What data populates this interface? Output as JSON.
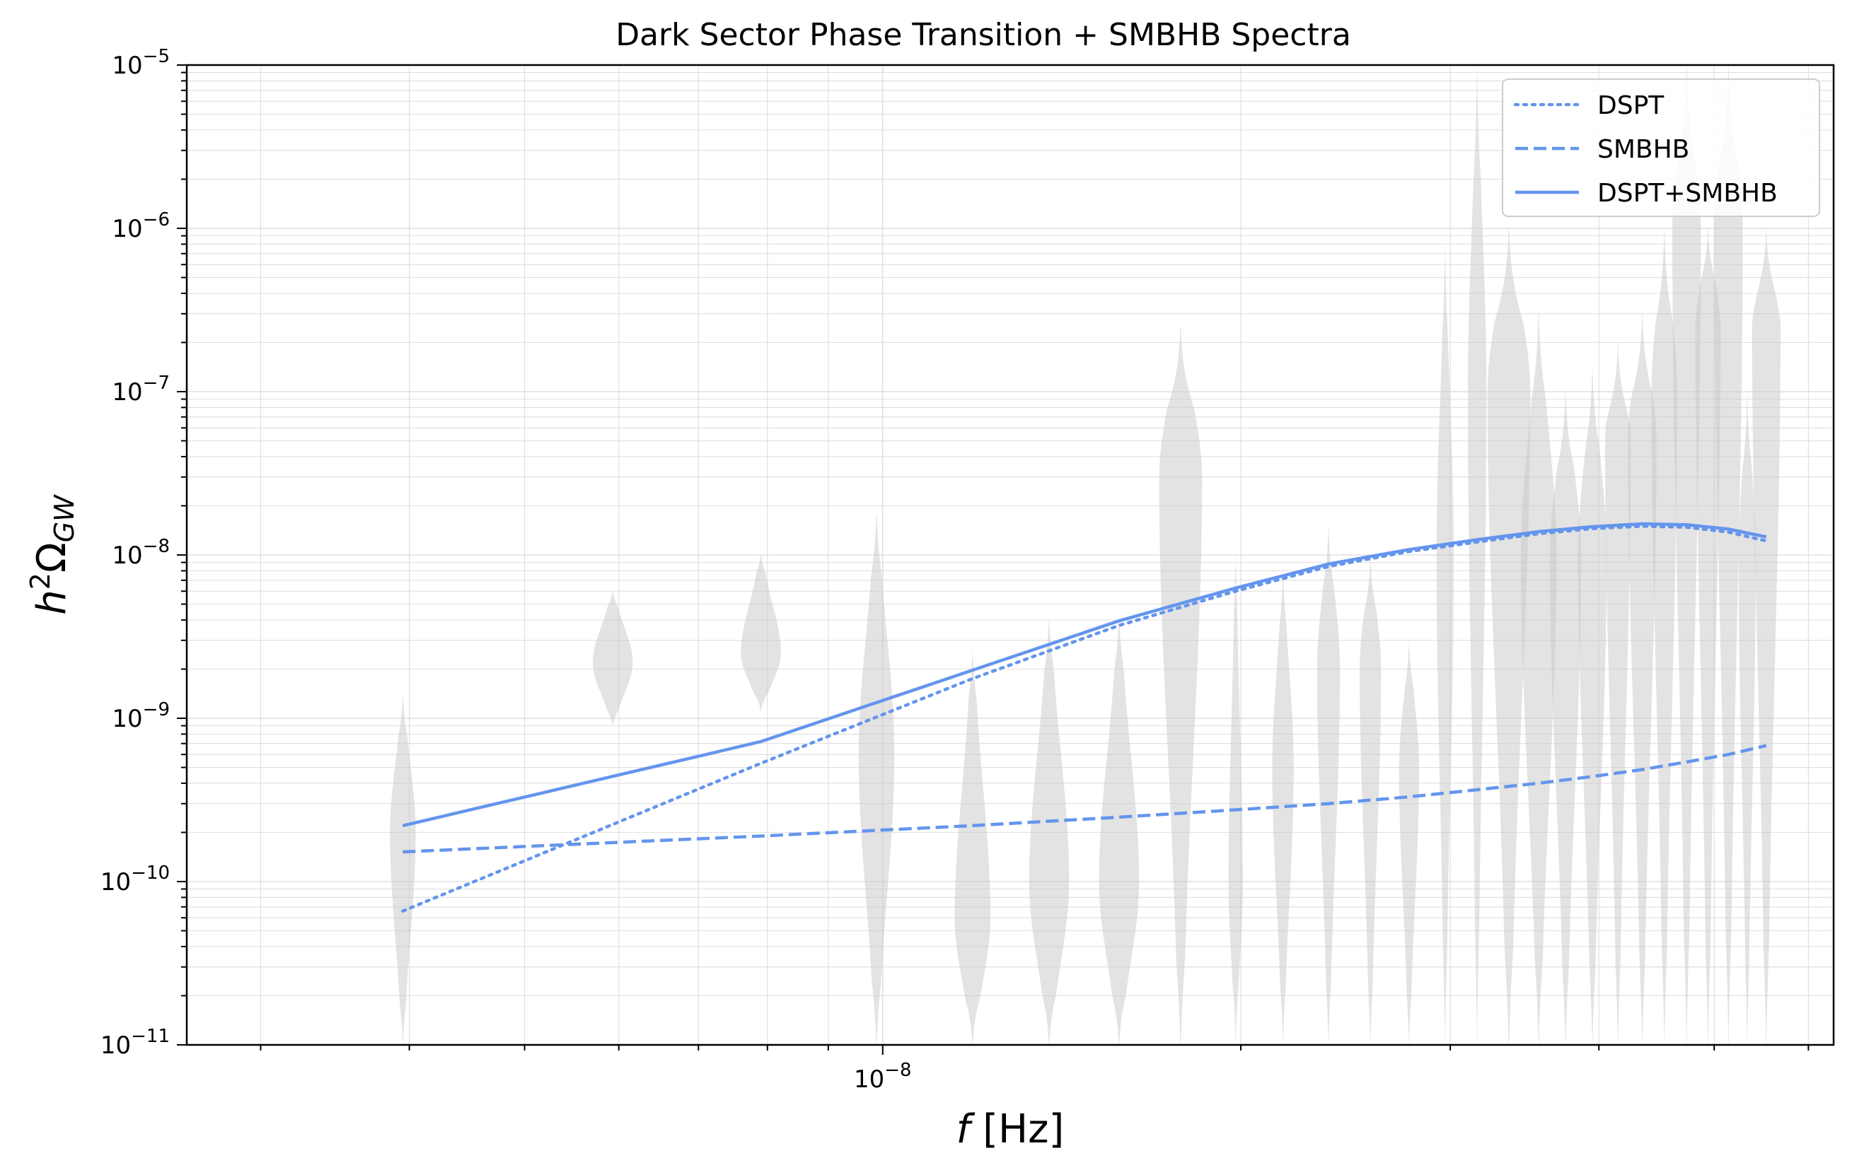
{
  "chart_data": {
    "type": "line",
    "title": "Dark Sector Phase Transition + SMBHB Spectra",
    "xlabel": {
      "italic": "f",
      "rest": " [Hz]"
    },
    "ylabel": {
      "base": "h",
      "sup": "2",
      "omega": "Ω",
      "sub": "GW"
    },
    "x_scale": "log",
    "y_scale": "log",
    "xlim": [
      2.6e-09,
      6.3e-08
    ],
    "ylim": [
      1e-11,
      1e-05
    ],
    "x_major_ticks": [
      {
        "value": 1e-08,
        "mantissa": "10",
        "exponent": "−8"
      }
    ],
    "y_major_ticks": [
      {
        "value": 1e-11,
        "mantissa": "10",
        "exponent": "−11"
      },
      {
        "value": 1e-10,
        "mantissa": "10",
        "exponent": "−10"
      },
      {
        "value": 1e-09,
        "mantissa": "10",
        "exponent": "−9"
      },
      {
        "value": 1e-08,
        "mantissa": "10",
        "exponent": "−8"
      },
      {
        "value": 1e-07,
        "mantissa": "10",
        "exponent": "−7"
      },
      {
        "value": 1e-06,
        "mantissa": "10",
        "exponent": "−6"
      },
      {
        "value": 1e-05,
        "mantissa": "10",
        "exponent": "−5"
      }
    ],
    "grid": true,
    "legend_position": "top-right",
    "series_color": "#6495ed",
    "violin_color": "#c8c8c8",
    "x": [
      3.95e-09,
      7.9e-09,
      1.19e-08,
      1.58e-08,
      1.98e-08,
      2.37e-08,
      2.77e-08,
      3.16e-08,
      3.56e-08,
      3.95e-08,
      4.35e-08,
      4.74e-08,
      5.14e-08,
      5.53e-08
    ],
    "series": [
      {
        "name": "DSPT",
        "style": "dotted",
        "values": [
          6.6e-11,
          5.3e-10,
          1.75e-09,
          3.7e-09,
          6e-09,
          8.5e-09,
          1.05e-08,
          1.2e-08,
          1.35e-08,
          1.45e-08,
          1.5e-08,
          1.48e-08,
          1.38e-08,
          1.22e-08
        ]
      },
      {
        "name": "SMBHB",
        "style": "dashed",
        "values": [
          1.52e-10,
          1.9e-10,
          2.2e-10,
          2.48e-10,
          2.75e-10,
          3e-10,
          3.3e-10,
          3.65e-10,
          4e-10,
          4.4e-10,
          4.85e-10,
          5.4e-10,
          6e-10,
          6.8e-10
        ]
      },
      {
        "name": "DSPT+SMBHB",
        "style": "solid",
        "values": [
          2.2e-10,
          7.2e-10,
          1.97e-09,
          3.95e-09,
          6.27e-09,
          8.8e-09,
          1.08e-08,
          1.24e-08,
          1.39e-08,
          1.49e-08,
          1.55e-08,
          1.53e-08,
          1.44e-08,
          1.29e-08
        ]
      }
    ],
    "violins": [
      {
        "center": 3.95e-09,
        "min": 1e-11,
        "max": 1.4e-09,
        "peak": 2e-10,
        "width": 0.18
      },
      {
        "center": 5.93e-09,
        "min": 9e-10,
        "max": 6e-09,
        "peak": 2.2e-09,
        "width": 0.28
      },
      {
        "center": 7.9e-09,
        "min": 1.1e-09,
        "max": 1e-08,
        "peak": 2.5e-09,
        "width": 0.28
      },
      {
        "center": 9.88e-09,
        "min": 1e-11,
        "max": 1.8e-08,
        "peak": 6e-10,
        "width": 0.25
      },
      {
        "center": 1.19e-08,
        "min": 1e-11,
        "max": 2.5e-09,
        "peak": 6e-11,
        "width": 0.25
      },
      {
        "center": 1.38e-08,
        "min": 1e-11,
        "max": 4e-09,
        "peak": 1e-10,
        "width": 0.28
      },
      {
        "center": 1.58e-08,
        "min": 1e-11,
        "max": 4e-09,
        "peak": 1e-10,
        "width": 0.28
      },
      {
        "center": 1.78e-08,
        "min": 1e-11,
        "max": 2.5e-07,
        "peak": 3e-08,
        "width": 0.3
      },
      {
        "center": 1.98e-08,
        "min": 1e-11,
        "max": 1e-08,
        "peak": 1e-10,
        "width": 0.1
      },
      {
        "center": 2.17e-08,
        "min": 1e-11,
        "max": 8e-09,
        "peak": 5e-10,
        "width": 0.15
      },
      {
        "center": 2.37e-08,
        "min": 1e-11,
        "max": 1.5e-08,
        "peak": 2e-09,
        "width": 0.16
      },
      {
        "center": 2.57e-08,
        "min": 1e-11,
        "max": 1e-08,
        "peak": 2e-09,
        "width": 0.15
      },
      {
        "center": 2.77e-08,
        "min": 1e-11,
        "max": 3e-09,
        "peak": 5e-10,
        "width": 0.14
      },
      {
        "center": 2.97e-08,
        "min": 1e-11,
        "max": 8e-07,
        "peak": 1e-08,
        "width": 0.12
      },
      {
        "center": 3.16e-08,
        "min": 1e-11,
        "max": 1e-05,
        "peak": 1e-07,
        "width": 0.13
      },
      {
        "center": 3.36e-08,
        "min": 1e-11,
        "max": 1e-06,
        "peak": 1e-07,
        "width": 0.3
      },
      {
        "center": 3.56e-08,
        "min": 1e-11,
        "max": 3e-07,
        "peak": 1e-08,
        "width": 0.25
      },
      {
        "center": 3.75e-08,
        "min": 1e-11,
        "max": 1e-07,
        "peak": 1e-08,
        "width": 0.22
      },
      {
        "center": 3.95e-08,
        "min": 1e-11,
        "max": 1.4e-07,
        "peak": 1e-08,
        "width": 0.2
      },
      {
        "center": 4.15e-08,
        "min": 1e-11,
        "max": 2e-07,
        "peak": 5e-08,
        "width": 0.18
      },
      {
        "center": 4.35e-08,
        "min": 1e-11,
        "max": 3e-07,
        "peak": 5e-08,
        "width": 0.2
      },
      {
        "center": 4.54e-08,
        "min": 1e-11,
        "max": 1e-06,
        "peak": 1e-07,
        "width": 0.18
      },
      {
        "center": 4.74e-08,
        "min": 1e-11,
        "max": 1e-05,
        "peak": 1e-06,
        "width": 0.2
      },
      {
        "center": 4.94e-08,
        "min": 1e-11,
        "max": 1e-06,
        "peak": 4e-07,
        "width": 0.18
      },
      {
        "center": 5.14e-08,
        "min": 1e-11,
        "max": 1e-05,
        "peak": 1e-06,
        "width": 0.2
      },
      {
        "center": 5.33e-08,
        "min": 1e-11,
        "max": 1e-07,
        "peak": 1e-08,
        "width": 0.12
      },
      {
        "center": 5.53e-08,
        "min": 1e-11,
        "max": 1e-06,
        "peak": 3e-07,
        "width": 0.2
      }
    ]
  }
}
